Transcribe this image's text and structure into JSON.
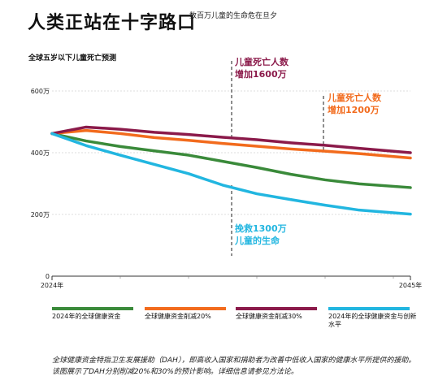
{
  "header": {
    "title": "人类正站在十字路口",
    "subtitle": "数百万儿童的生命危在旦夕"
  },
  "chart_label": "全球五岁以下儿童死亡预测",
  "chart_data": {
    "type": "line",
    "x": [
      2024,
      2026,
      2028,
      2030,
      2032,
      2034,
      2036,
      2038,
      2040,
      2042,
      2045
    ],
    "xlabel": "",
    "ylabel": "",
    "xlim": [
      2024,
      2045
    ],
    "ylim": [
      0,
      600
    ],
    "x_tick_labels": [
      "2024年",
      "2045年"
    ],
    "y_ticks": [
      0,
      200,
      400,
      600
    ],
    "y_tick_labels": [
      "0",
      "200万",
      "400万",
      "600万"
    ],
    "grid": "horizontal dashed",
    "series": [
      {
        "name": "2024年的全球健康资金",
        "color": "#3a8a3a",
        "values": [
          462,
          438,
          420,
          406,
          392,
          372,
          352,
          330,
          312,
          299,
          287
        ]
      },
      {
        "name": "全球健康资金削减20%",
        "color": "#f26b1d",
        "values": [
          462,
          472,
          462,
          449,
          440,
          430,
          421,
          412,
          405,
          397,
          383
        ]
      },
      {
        "name": "全球健康资金削减30%",
        "color": "#8b1a4a",
        "values": [
          462,
          483,
          476,
          466,
          459,
          450,
          442,
          432,
          424,
          414,
          400
        ]
      },
      {
        "name": "2024年的全球健康资金与创新水平",
        "color": "#22b6e0",
        "values": [
          462,
          423,
          392,
          362,
          332,
          295,
          267,
          248,
          230,
          214,
          201
        ]
      }
    ],
    "annotations": [
      {
        "label_lines": [
          "儿童死亡人数",
          "增加1600万"
        ],
        "color": "#8b1a4a",
        "x": 2033
      },
      {
        "label_lines": [
          "儿童死亡人数",
          "增加1200万"
        ],
        "color": "#f26b1d",
        "x": 2042
      },
      {
        "label_lines": [
          "挽救1300万",
          "儿童的生命"
        ],
        "color": "#22b6e0",
        "x": 2033
      }
    ]
  },
  "legend": [
    {
      "label": "2024年的全球健康资金",
      "color": "#3a8a3a"
    },
    {
      "label": "全球健康资金削减20%",
      "color": "#f26b1d"
    },
    {
      "label": "全球健康资金削减30%",
      "color": "#8b1a4a"
    },
    {
      "label": "2024年的全球健康资金与创新水平",
      "color": "#22b6e0"
    }
  ],
  "footnote": "全球健康资金特指卫生发展援助（DAH），即高收入国家和捐助者为改善中低收入国家的健康水平所提供的援助。该图展示了DAH分别削减20%和30%的预计影响。详细信息请参见方法论。"
}
